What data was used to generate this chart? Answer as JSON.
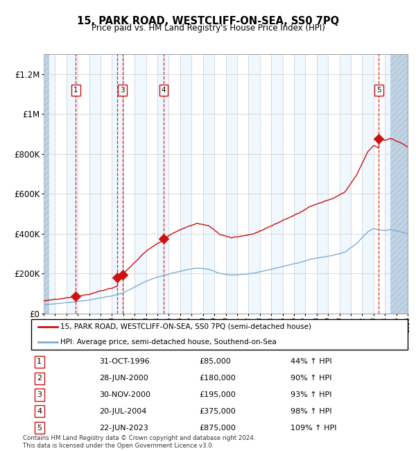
{
  "title": "15, PARK ROAD, WESTCLIFF-ON-SEA, SS0 7PQ",
  "subtitle": "Price paid vs. HM Land Registry's House Price Index (HPI)",
  "footer": "Contains HM Land Registry data © Crown copyright and database right 2024.\nThis data is licensed under the Open Government Licence v3.0.",
  "legend_line1": "15, PARK ROAD, WESTCLIFF-ON-SEA, SS0 7PQ (semi-detached house)",
  "legend_line2": "HPI: Average price, semi-detached house, Southend-on-Sea",
  "sales": [
    {
      "num": 1,
      "date_label": "31-OCT-1996",
      "date_x": 1996.83,
      "price": 85000,
      "pct": "44% ↑ HPI"
    },
    {
      "num": 2,
      "date_label": "28-JUN-2000",
      "date_x": 2000.49,
      "price": 180000,
      "pct": "90% ↑ HPI"
    },
    {
      "num": 3,
      "date_label": "30-NOV-2000",
      "date_x": 2000.92,
      "price": 195000,
      "pct": "93% ↑ HPI"
    },
    {
      "num": 4,
      "date_label": "20-JUL-2004",
      "date_x": 2004.55,
      "price": 375000,
      "pct": "98% ↑ HPI"
    },
    {
      "num": 5,
      "date_label": "22-JUN-2023",
      "date_x": 2023.47,
      "price": 875000,
      "pct": "109% ↑ HPI"
    }
  ],
  "chart_labels": [
    1,
    3,
    4,
    5
  ],
  "xmin": 1994.0,
  "xmax": 2026.0,
  "ymin": 0,
  "ymax": 1300000,
  "yticks": [
    0,
    200000,
    400000,
    600000,
    800000,
    1000000,
    1200000
  ],
  "ytick_labels": [
    "£0",
    "£200K",
    "£400K",
    "£600K",
    "£800K",
    "£1M",
    "£1.2M"
  ],
  "hpi_color": "#7aaed4",
  "price_color": "#cc1111",
  "sale_marker_color": "#cc1111",
  "grid_color": "#cccccc",
  "vline_color": "#cc1111",
  "col_stripe_color": "#ddeeff",
  "hatch_color": "#c0d4e8",
  "hatch_edge_color": "#b0c4d8",
  "label_box_edge": "#cc1111",
  "hatch_left_xmax": 1994.5,
  "hatch_right_xmin": 2024.5
}
